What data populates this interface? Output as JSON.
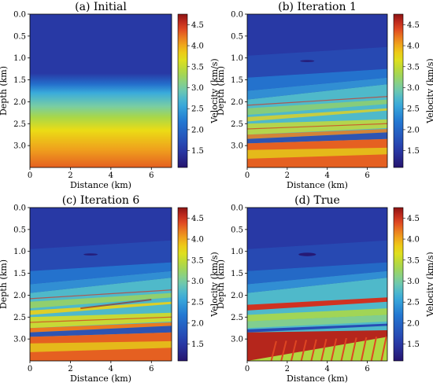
{
  "chart_data": [
    {
      "type": "heatmap",
      "title": "(a) Initial",
      "xlabel": "Distance (km)",
      "ylabel": "Depth (km)",
      "colorbar_label": "Velocity (km/s)",
      "xlim": [
        0,
        7
      ],
      "ylim": [
        3.5,
        0.0
      ],
      "xticks": [
        0,
        2,
        4,
        6
      ],
      "yticks": [
        0.0,
        0.5,
        1.0,
        1.5,
        2.0,
        2.5,
        3.0
      ],
      "cbar_ticks": [
        1.5,
        2.0,
        2.5,
        3.0,
        3.5,
        4.0,
        4.5
      ],
      "vrange": [
        1.1,
        4.75
      ],
      "model": "smooth-gradient"
    },
    {
      "type": "heatmap",
      "title": "(b) Iteration 1",
      "xlabel": "Distance (km)",
      "ylabel": "Depth (km)",
      "colorbar_label": "Velocity (km/s)",
      "xlim": [
        0,
        7
      ],
      "ylim": [
        3.5,
        0.0
      ],
      "xticks": [
        0,
        2,
        4,
        6
      ],
      "yticks": [
        0.0,
        0.5,
        1.0,
        1.5,
        2.0,
        2.5,
        3.0
      ],
      "cbar_ticks": [
        1.5,
        2.0,
        2.5,
        3.0,
        3.5,
        4.0,
        4.5
      ],
      "vrange": [
        1.1,
        4.75
      ],
      "model": "inverted-blurry"
    },
    {
      "type": "heatmap",
      "title": "(c) Iteration 6",
      "xlabel": "Distance (km)",
      "ylabel": "Depth (km)",
      "colorbar_label": "Velocity (km/s)",
      "xlim": [
        0,
        7
      ],
      "ylim": [
        3.5,
        0.0
      ],
      "xticks": [
        0,
        2,
        4,
        6
      ],
      "yticks": [
        0.0,
        0.5,
        1.0,
        1.5,
        2.0,
        2.5,
        3.0
      ],
      "cbar_ticks": [
        1.5,
        2.0,
        2.5,
        3.0,
        3.5,
        4.0,
        4.5
      ],
      "vrange": [
        1.1,
        4.75
      ],
      "model": "inverted-sharp"
    },
    {
      "type": "heatmap",
      "title": "(d) True",
      "xlabel": "Distance (km)",
      "ylabel": "Depth (km)",
      "colorbar_label": "Velocity (km/s)",
      "xlim": [
        0,
        7
      ],
      "ylim": [
        3.5,
        0.0
      ],
      "xticks": [
        0,
        2,
        4,
        6
      ],
      "yticks": [
        0.0,
        0.5,
        1.0,
        1.5,
        2.0,
        2.5,
        3.0
      ],
      "cbar_ticks": [
        1.5,
        2.0,
        2.5,
        3.0,
        3.5,
        4.0,
        4.5
      ],
      "vrange": [
        1.1,
        4.75
      ],
      "model": "true"
    }
  ]
}
